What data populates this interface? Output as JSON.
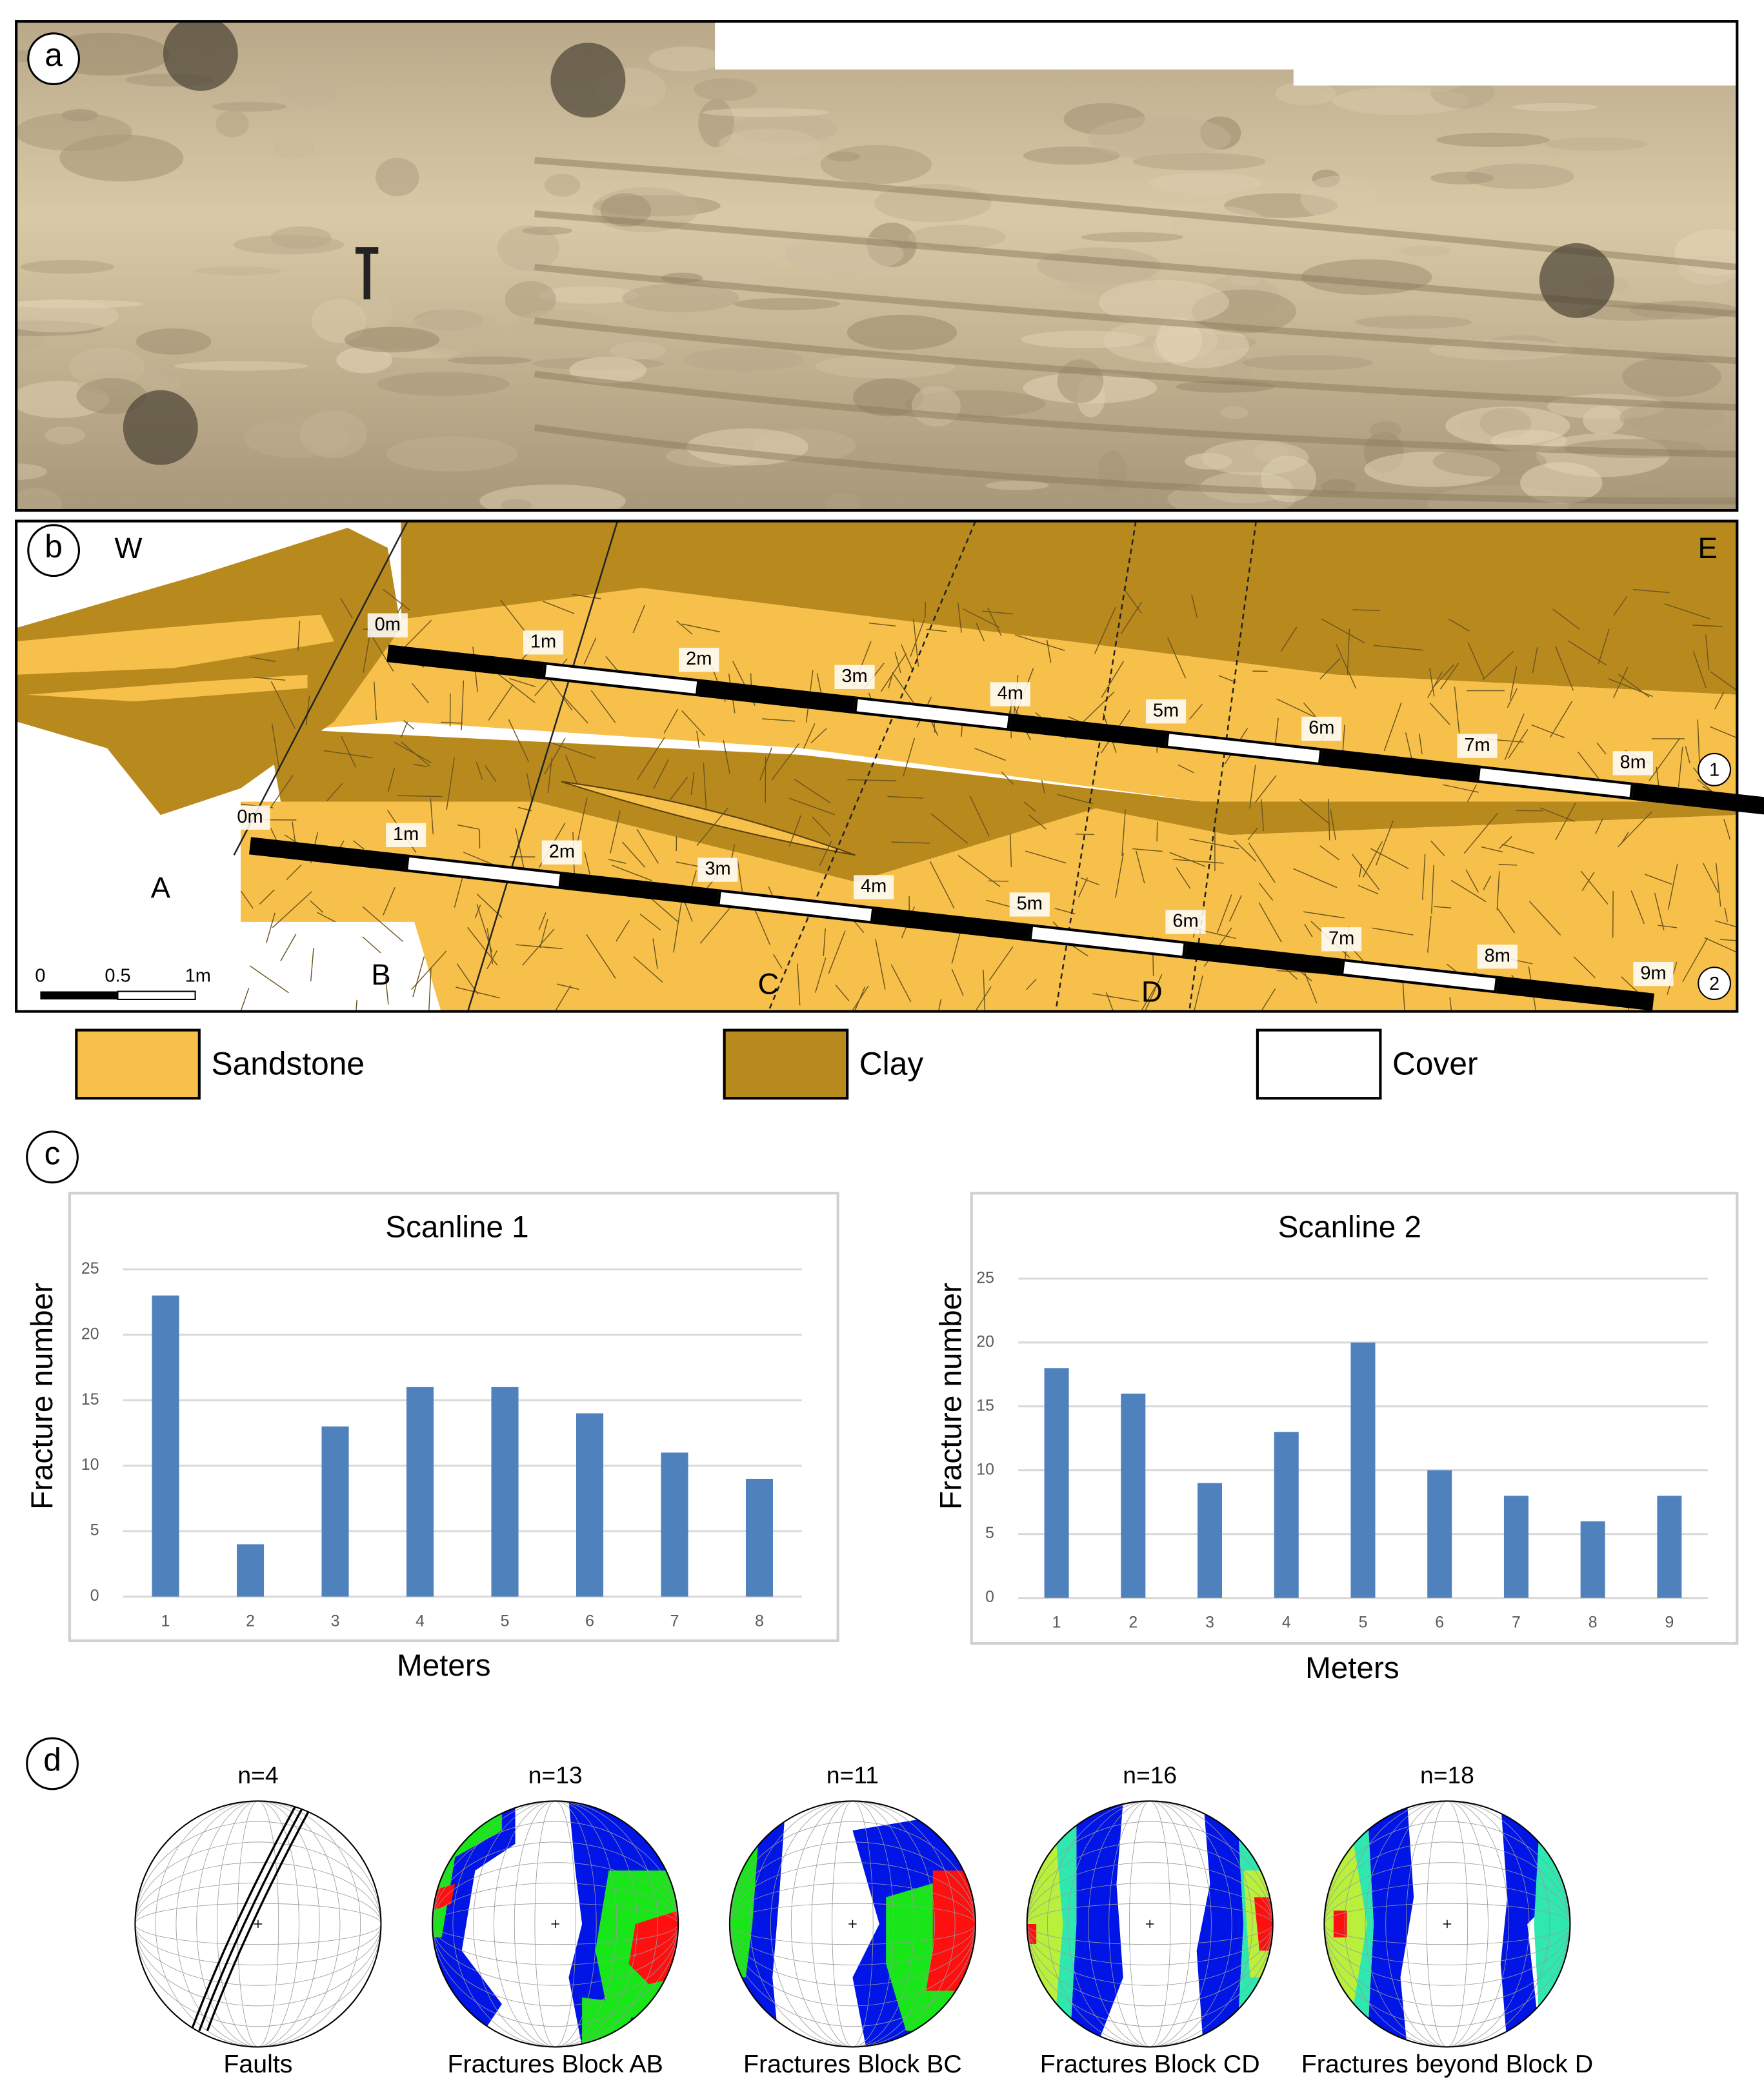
{
  "panel_labels": [
    "a",
    "b",
    "c",
    "d"
  ],
  "panel_b": {
    "west": "W",
    "east": "E",
    "scanline_1_marks": [
      "0m",
      "1m",
      "2m",
      "3m",
      "4m",
      "5m",
      "6m",
      "7m",
      "8m"
    ],
    "scanline_2_marks": [
      "0m",
      "1m",
      "2m",
      "3m",
      "4m",
      "5m",
      "6m",
      "7m",
      "8m",
      "9m"
    ],
    "blocks": [
      "A",
      "B",
      "C",
      "D"
    ],
    "scale": [
      "0",
      "0.5",
      "1m"
    ],
    "scanline_ids": [
      "1",
      "2"
    ]
  },
  "legend": [
    "Sandstone",
    "Clay",
    "Cover"
  ],
  "chart_data": [
    {
      "type": "bar",
      "title": "Scanline 1",
      "x_label": "Meters",
      "y_label": "Fracture number",
      "categories": [
        "1",
        "2",
        "3",
        "4",
        "5",
        "6",
        "7",
        "8"
      ],
      "values": [
        23,
        4,
        13,
        16,
        16,
        14,
        11,
        9
      ],
      "color": "#4f81bd",
      "ylim": [
        0,
        25
      ],
      "yticks": [
        0,
        5,
        10,
        15,
        20,
        25
      ],
      "grid": true
    },
    {
      "type": "bar",
      "title": "Scanline 2",
      "x_label": "Meters",
      "y_label": "Fracture number",
      "categories": [
        "1",
        "2",
        "3",
        "4",
        "5",
        "6",
        "7",
        "8",
        "9"
      ],
      "values": [
        18,
        16,
        9,
        13,
        20,
        10,
        8,
        6,
        8
      ],
      "color": "#4f81bd",
      "ylim": [
        0,
        25
      ],
      "yticks": [
        0,
        5,
        10,
        15,
        20,
        25
      ],
      "grid": true
    }
  ],
  "stereonets": [
    {
      "n": "n=4",
      "caption": "Faults"
    },
    {
      "n": "n=13",
      "caption": "Fractures Block AB"
    },
    {
      "n": "n=11",
      "caption": "Fractures Block BC"
    },
    {
      "n": "n=16",
      "caption": "Fractures Block CD"
    },
    {
      "n": "n=18",
      "caption": "Fractures beyond Block D"
    }
  ]
}
